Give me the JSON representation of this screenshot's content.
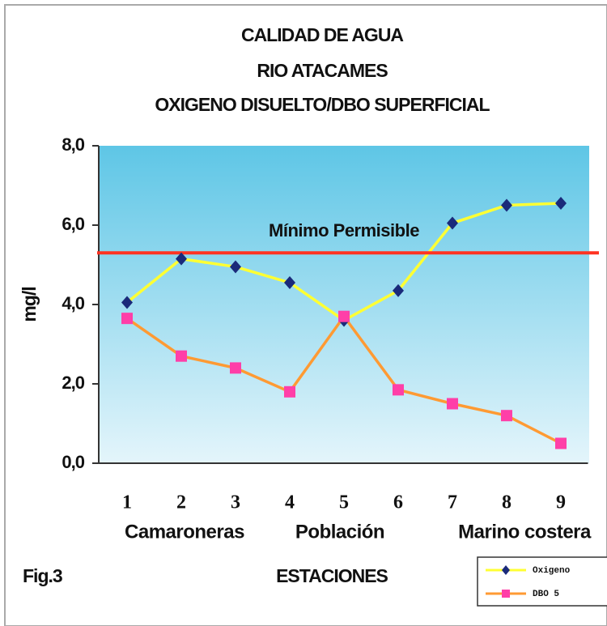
{
  "chart_data": {
    "type": "line",
    "title": [
      "CALIDAD DE AGUA",
      "RIO ATACAMES",
      "OXIGENO DISUELTO/DBO SUPERFICIAL"
    ],
    "y_label": "mg/l",
    "x_label": "ESTACIONES",
    "figure_label": "Fig.3",
    "categories": [
      "1",
      "2",
      "3",
      "4",
      "5",
      "6",
      "7",
      "8",
      "9"
    ],
    "group_labels": [
      "Camaroneras",
      "Población",
      "Marino costera"
    ],
    "series": [
      {
        "name": "Oxigeno",
        "color": "#ffff33",
        "marker_color": "#1a2a7a",
        "values": [
          4.05,
          5.15,
          4.95,
          4.55,
          3.6,
          4.35,
          6.05,
          6.5,
          6.55
        ]
      },
      {
        "name": "DBO 5",
        "color": "#ff9a33",
        "marker_color": "#ff3fa8",
        "values": [
          3.65,
          2.7,
          2.4,
          1.8,
          3.7,
          1.85,
          1.5,
          1.2,
          0.5
        ]
      }
    ],
    "reference_line": {
      "value": 5.3,
      "label": "Mínimo Permisible",
      "color": "#ff3322"
    },
    "ylim": [
      0,
      8
    ],
    "yticks": [
      {
        "value": 0,
        "label": "0,0"
      },
      {
        "value": 2,
        "label": "2,0"
      },
      {
        "value": 4,
        "label": "4,0"
      },
      {
        "value": 6,
        "label": "6,0"
      },
      {
        "value": 8,
        "label": "8,0"
      }
    ]
  }
}
